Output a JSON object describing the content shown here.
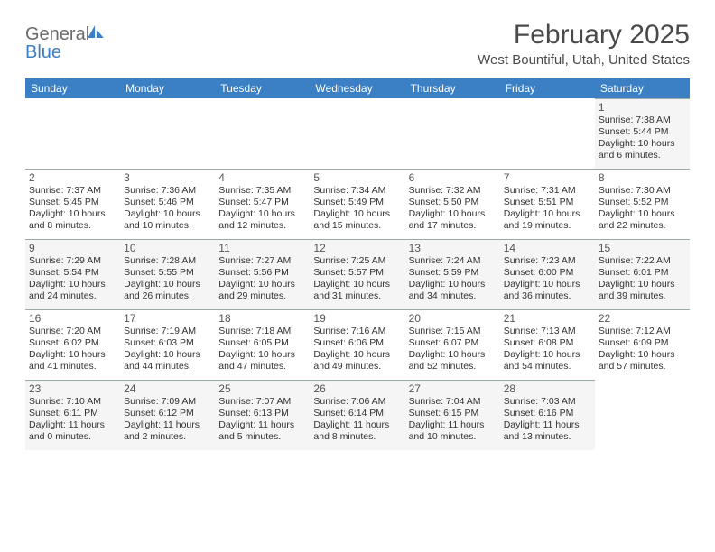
{
  "brand": {
    "part1": "General",
    "part2": "Blue"
  },
  "title": "February 2025",
  "location": "West Bountiful, Utah, United States",
  "colors": {
    "header_bg": "#3b7fc4",
    "header_text": "#ffffff",
    "alt_row_bg": "#f5f5f5",
    "text": "#333333",
    "border": "#99aabb"
  },
  "dow": [
    "Sunday",
    "Monday",
    "Tuesday",
    "Wednesday",
    "Thursday",
    "Friday",
    "Saturday"
  ],
  "weeks": [
    [
      null,
      null,
      null,
      null,
      null,
      null,
      {
        "n": "1",
        "sunrise": "7:38 AM",
        "sunset": "5:44 PM",
        "d1": "Daylight: 10 hours",
        "d2": "and 6 minutes."
      }
    ],
    [
      {
        "n": "2",
        "sunrise": "7:37 AM",
        "sunset": "5:45 PM",
        "d1": "Daylight: 10 hours",
        "d2": "and 8 minutes."
      },
      {
        "n": "3",
        "sunrise": "7:36 AM",
        "sunset": "5:46 PM",
        "d1": "Daylight: 10 hours",
        "d2": "and 10 minutes."
      },
      {
        "n": "4",
        "sunrise": "7:35 AM",
        "sunset": "5:47 PM",
        "d1": "Daylight: 10 hours",
        "d2": "and 12 minutes."
      },
      {
        "n": "5",
        "sunrise": "7:34 AM",
        "sunset": "5:49 PM",
        "d1": "Daylight: 10 hours",
        "d2": "and 15 minutes."
      },
      {
        "n": "6",
        "sunrise": "7:32 AM",
        "sunset": "5:50 PM",
        "d1": "Daylight: 10 hours",
        "d2": "and 17 minutes."
      },
      {
        "n": "7",
        "sunrise": "7:31 AM",
        "sunset": "5:51 PM",
        "d1": "Daylight: 10 hours",
        "d2": "and 19 minutes."
      },
      {
        "n": "8",
        "sunrise": "7:30 AM",
        "sunset": "5:52 PM",
        "d1": "Daylight: 10 hours",
        "d2": "and 22 minutes."
      }
    ],
    [
      {
        "n": "9",
        "sunrise": "7:29 AM",
        "sunset": "5:54 PM",
        "d1": "Daylight: 10 hours",
        "d2": "and 24 minutes."
      },
      {
        "n": "10",
        "sunrise": "7:28 AM",
        "sunset": "5:55 PM",
        "d1": "Daylight: 10 hours",
        "d2": "and 26 minutes."
      },
      {
        "n": "11",
        "sunrise": "7:27 AM",
        "sunset": "5:56 PM",
        "d1": "Daylight: 10 hours",
        "d2": "and 29 minutes."
      },
      {
        "n": "12",
        "sunrise": "7:25 AM",
        "sunset": "5:57 PM",
        "d1": "Daylight: 10 hours",
        "d2": "and 31 minutes."
      },
      {
        "n": "13",
        "sunrise": "7:24 AM",
        "sunset": "5:59 PM",
        "d1": "Daylight: 10 hours",
        "d2": "and 34 minutes."
      },
      {
        "n": "14",
        "sunrise": "7:23 AM",
        "sunset": "6:00 PM",
        "d1": "Daylight: 10 hours",
        "d2": "and 36 minutes."
      },
      {
        "n": "15",
        "sunrise": "7:22 AM",
        "sunset": "6:01 PM",
        "d1": "Daylight: 10 hours",
        "d2": "and 39 minutes."
      }
    ],
    [
      {
        "n": "16",
        "sunrise": "7:20 AM",
        "sunset": "6:02 PM",
        "d1": "Daylight: 10 hours",
        "d2": "and 41 minutes."
      },
      {
        "n": "17",
        "sunrise": "7:19 AM",
        "sunset": "6:03 PM",
        "d1": "Daylight: 10 hours",
        "d2": "and 44 minutes."
      },
      {
        "n": "18",
        "sunrise": "7:18 AM",
        "sunset": "6:05 PM",
        "d1": "Daylight: 10 hours",
        "d2": "and 47 minutes."
      },
      {
        "n": "19",
        "sunrise": "7:16 AM",
        "sunset": "6:06 PM",
        "d1": "Daylight: 10 hours",
        "d2": "and 49 minutes."
      },
      {
        "n": "20",
        "sunrise": "7:15 AM",
        "sunset": "6:07 PM",
        "d1": "Daylight: 10 hours",
        "d2": "and 52 minutes."
      },
      {
        "n": "21",
        "sunrise": "7:13 AM",
        "sunset": "6:08 PM",
        "d1": "Daylight: 10 hours",
        "d2": "and 54 minutes."
      },
      {
        "n": "22",
        "sunrise": "7:12 AM",
        "sunset": "6:09 PM",
        "d1": "Daylight: 10 hours",
        "d2": "and 57 minutes."
      }
    ],
    [
      {
        "n": "23",
        "sunrise": "7:10 AM",
        "sunset": "6:11 PM",
        "d1": "Daylight: 11 hours",
        "d2": "and 0 minutes."
      },
      {
        "n": "24",
        "sunrise": "7:09 AM",
        "sunset": "6:12 PM",
        "d1": "Daylight: 11 hours",
        "d2": "and 2 minutes."
      },
      {
        "n": "25",
        "sunrise": "7:07 AM",
        "sunset": "6:13 PM",
        "d1": "Daylight: 11 hours",
        "d2": "and 5 minutes."
      },
      {
        "n": "26",
        "sunrise": "7:06 AM",
        "sunset": "6:14 PM",
        "d1": "Daylight: 11 hours",
        "d2": "and 8 minutes."
      },
      {
        "n": "27",
        "sunrise": "7:04 AM",
        "sunset": "6:15 PM",
        "d1": "Daylight: 11 hours",
        "d2": "and 10 minutes."
      },
      {
        "n": "28",
        "sunrise": "7:03 AM",
        "sunset": "6:16 PM",
        "d1": "Daylight: 11 hours",
        "d2": "and 13 minutes."
      },
      null
    ]
  ],
  "labels": {
    "sunrise_prefix": "Sunrise: ",
    "sunset_prefix": "Sunset: "
  }
}
